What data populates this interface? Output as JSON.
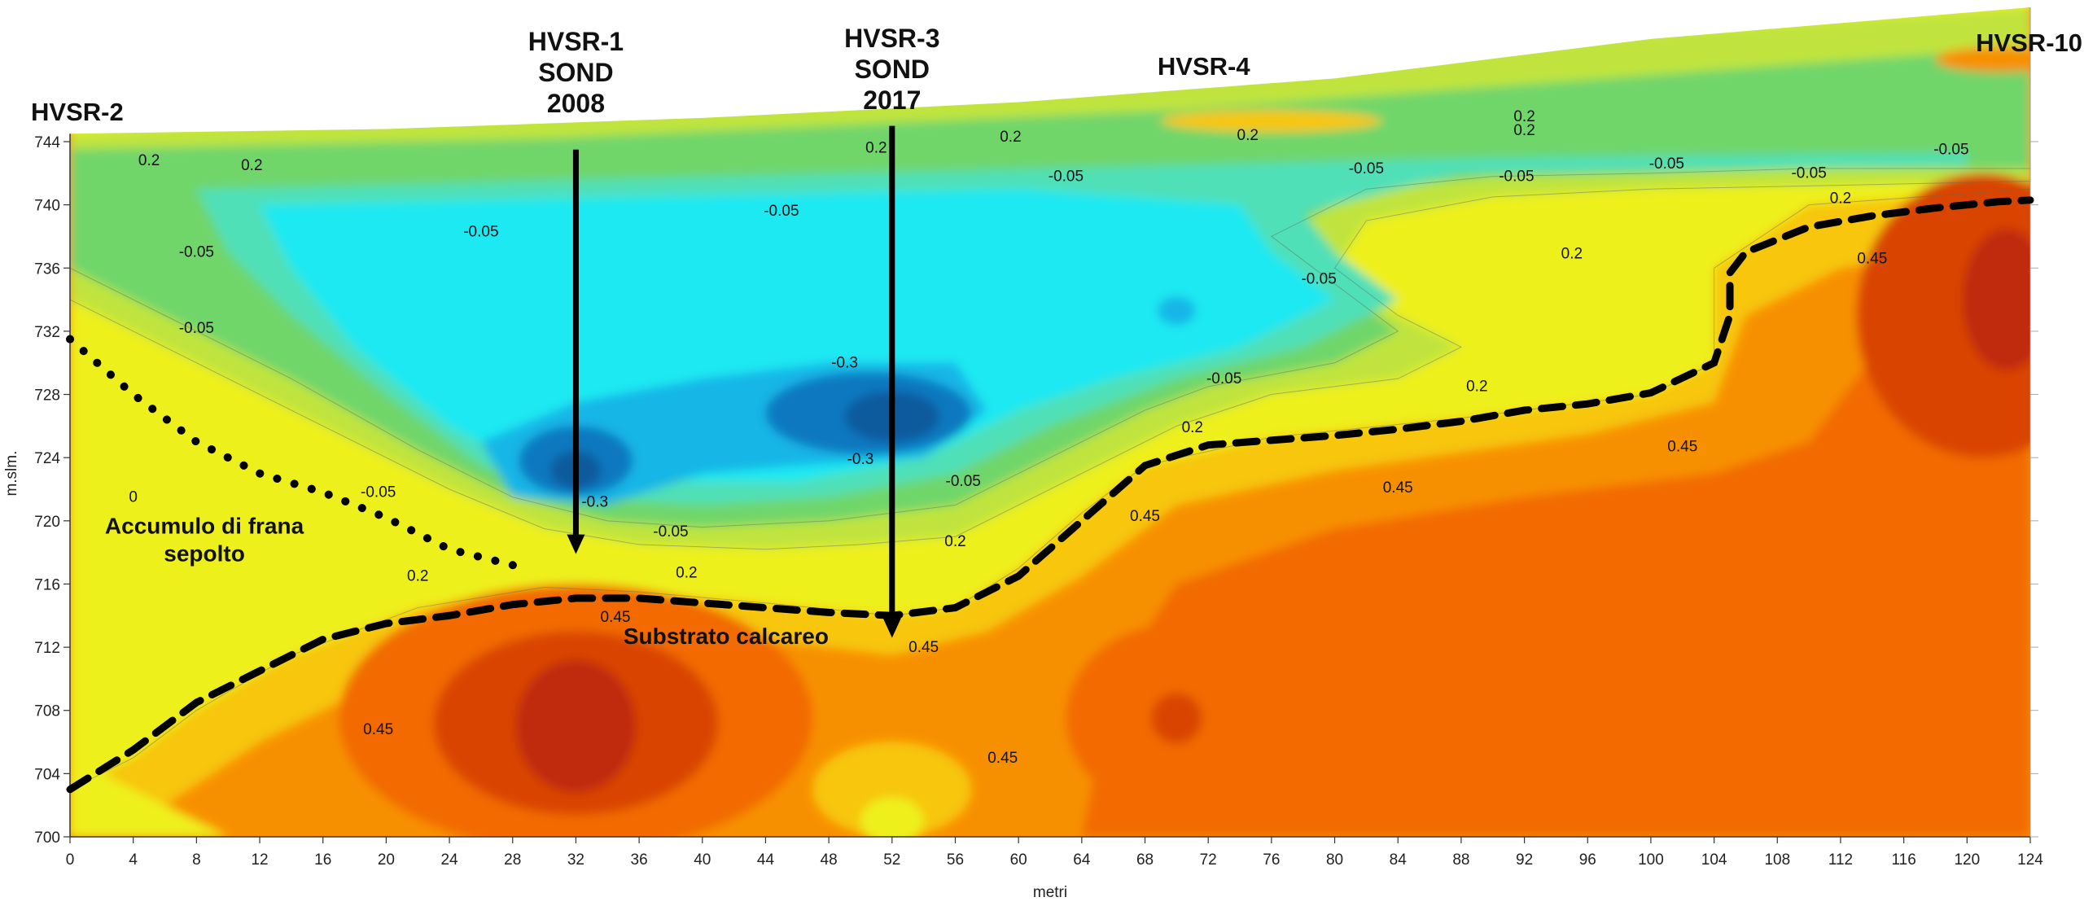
{
  "chart_data": {
    "type": "heatmap",
    "title": "",
    "xlabel": "metri",
    "ylabel": "m.slm.",
    "xlim": [
      0,
      124
    ],
    "ylim": [
      700,
      745
    ],
    "x_ticks": [
      "0",
      "4",
      "8",
      "12",
      "16",
      "20",
      "24",
      "28",
      "32",
      "36",
      "40",
      "44",
      "48",
      "52",
      "56",
      "60",
      "64",
      "68",
      "72",
      "76",
      "80",
      "84",
      "88",
      "92",
      "96",
      "100",
      "104",
      "108",
      "112",
      "116",
      "120",
      "124"
    ],
    "y_ticks": [
      "700",
      "704",
      "708",
      "712",
      "716",
      "720",
      "724",
      "728",
      "732",
      "736",
      "740",
      "744"
    ],
    "grid": false,
    "colorscale_levels": [
      -0.3,
      -0.05,
      0.2,
      0.45
    ],
    "colors": {
      "deep_blue": "#0a5a9c",
      "mid_blue": "#0878c0",
      "light_blue": "#19b6e6",
      "cyan": "#1de9f2",
      "teal": "#4fe0b8",
      "green": "#6fd66b",
      "yellow_green": "#c0e43c",
      "yellow": "#eef01e",
      "gold": "#f7c60a",
      "orange": "#f79000",
      "dark_orange": "#f26a00",
      "red_orange": "#d94400",
      "dark_red": "#c02a08"
    },
    "surface_profile": [
      [
        0,
        744.5
      ],
      [
        20,
        744.8
      ],
      [
        40,
        745.5
      ],
      [
        60,
        746.5
      ],
      [
        80,
        748
      ],
      [
        100,
        750.5
      ],
      [
        124,
        752.5
      ]
    ],
    "boreholes": [
      {
        "name_line1": "HVSR-1",
        "name_line2": "SOND",
        "name_line3": "2008",
        "x": 32,
        "top": 743.5,
        "bottom": 718
      },
      {
        "name_line1": "HVSR-3",
        "name_line2": "SOND",
        "name_line3": "2017",
        "x": 52,
        "top": 745,
        "bottom": 712.7
      }
    ],
    "station_labels": [
      {
        "text": "HVSR-2",
        "x": 0
      },
      {
        "text": "HVSR-4",
        "x": 71
      },
      {
        "text": "HVSR-10",
        "x": 124
      }
    ],
    "annotations": [
      {
        "line1": "Accumulo di frana",
        "line2": "sepolto",
        "x": 8,
        "y": 719.5
      },
      {
        "line1": "Substrato calcareo",
        "line2": "",
        "x": 41,
        "y": 712.5
      }
    ],
    "boundary_dashed": [
      [
        0,
        703
      ],
      [
        4,
        705.5
      ],
      [
        8,
        708.5
      ],
      [
        12,
        710.5
      ],
      [
        16,
        712.5
      ],
      [
        20,
        713.5
      ],
      [
        24,
        714
      ],
      [
        28,
        714.7
      ],
      [
        32,
        715.1
      ],
      [
        36,
        715.1
      ],
      [
        40,
        714.8
      ],
      [
        44,
        714.5
      ],
      [
        48,
        714.2
      ],
      [
        52,
        714
      ],
      [
        56,
        714.5
      ],
      [
        60,
        716.5
      ],
      [
        64,
        720
      ],
      [
        68,
        723.5
      ],
      [
        72,
        724.8
      ],
      [
        76,
        725.1
      ],
      [
        80,
        725.4
      ],
      [
        84,
        725.8
      ],
      [
        88,
        726.3
      ],
      [
        92,
        727
      ],
      [
        96,
        727.4
      ],
      [
        100,
        728.1
      ],
      [
        104,
        730
      ],
      [
        105,
        733
      ],
      [
        105,
        735.7
      ],
      [
        106,
        737
      ],
      [
        110,
        738.6
      ],
      [
        114,
        739.3
      ],
      [
        118,
        739.8
      ],
      [
        122,
        740.2
      ],
      [
        124,
        740.3
      ]
    ],
    "boundary_dotted": [
      [
        0,
        731.5
      ],
      [
        4,
        728
      ],
      [
        8,
        725
      ],
      [
        12,
        723
      ],
      [
        16,
        721.8
      ],
      [
        20,
        720.2
      ],
      [
        24,
        718.2
      ],
      [
        28,
        717.2
      ],
      [
        28.5,
        717
      ]
    ],
    "contour_labels": [
      {
        "text": "0.2",
        "x": 5,
        "y": 742.5
      },
      {
        "text": "0.2",
        "x": 11.5,
        "y": 742.2
      },
      {
        "text": "-0.05",
        "x": 8,
        "y": 736.7
      },
      {
        "text": "-0.05",
        "x": 26,
        "y": 738
      },
      {
        "text": "-0.05",
        "x": 45,
        "y": 739.3
      },
      {
        "text": "-0.05",
        "x": 63,
        "y": 741.5
      },
      {
        "text": "-0.05",
        "x": 82,
        "y": 742
      },
      {
        "text": "-0.05",
        "x": 91.5,
        "y": 741.5
      },
      {
        "text": "-0.05",
        "x": 101,
        "y": 742.3
      },
      {
        "text": "-0.05",
        "x": 110,
        "y": 741.7
      },
      {
        "text": "-0.05",
        "x": 119,
        "y": 743.2
      },
      {
        "text": "0.2",
        "x": 51,
        "y": 743.3
      },
      {
        "text": "0.2",
        "x": 59.5,
        "y": 744
      },
      {
        "text": "0.2",
        "x": 74.5,
        "y": 744.1
      },
      {
        "text": "0.2",
        "x": 92,
        "y": 745.3
      },
      {
        "text": "0.2",
        "x": 92,
        "y": 744.4
      },
      {
        "text": "-0.05",
        "x": 8,
        "y": 731.9
      },
      {
        "text": "-0.05",
        "x": 79,
        "y": 735
      },
      {
        "text": "-0.3",
        "x": 49,
        "y": 729.7
      },
      {
        "text": "-0.3",
        "x": 50,
        "y": 723.6
      },
      {
        "text": "-0.3",
        "x": 33.2,
        "y": 720.9
      },
      {
        "text": "-0.05",
        "x": 19.5,
        "y": 721.5
      },
      {
        "text": "-0.05",
        "x": 38,
        "y": 719
      },
      {
        "text": "-0.05",
        "x": 56.5,
        "y": 722.2
      },
      {
        "text": "-0.05",
        "x": 73,
        "y": 728.7
      },
      {
        "text": "0.2",
        "x": 71,
        "y": 725.6
      },
      {
        "text": "0.2",
        "x": 56,
        "y": 718.4
      },
      {
        "text": "0.2",
        "x": 22,
        "y": 716.2
      },
      {
        "text": "0.2",
        "x": 39,
        "y": 716.4
      },
      {
        "text": "0.2",
        "x": 89,
        "y": 728.2
      },
      {
        "text": "0.2",
        "x": 95,
        "y": 736.6
      },
      {
        "text": "0.2",
        "x": 112,
        "y": 740.1
      },
      {
        "text": "0.45",
        "x": 114,
        "y": 736.3
      },
      {
        "text": "0.45",
        "x": 102,
        "y": 724.4
      },
      {
        "text": "0.45",
        "x": 84,
        "y": 721.8
      },
      {
        "text": "0.45",
        "x": 68,
        "y": 720
      },
      {
        "text": "0.45",
        "x": 34.5,
        "y": 713.6
      },
      {
        "text": "0.45",
        "x": 54,
        "y": 711.7
      },
      {
        "text": "0.45",
        "x": 19.5,
        "y": 706.5
      },
      {
        "text": "0.45",
        "x": 59,
        "y": 704.7
      },
      {
        "text": "0",
        "x": 4,
        "y": 721.2
      }
    ]
  }
}
